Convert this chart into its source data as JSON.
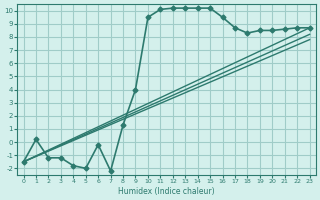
{
  "bg_color": "#d4f0ec",
  "grid_color": "#a0ccc8",
  "line_color": "#2d7a6e",
  "marker_color": "#2d7a6e",
  "xlabel": "Humidex (Indice chaleur)",
  "xlim": [
    -0.5,
    23.5
  ],
  "ylim": [
    -2.5,
    10.5
  ],
  "xticks": [
    0,
    1,
    2,
    3,
    4,
    5,
    6,
    7,
    8,
    9,
    10,
    11,
    12,
    13,
    14,
    15,
    16,
    17,
    18,
    19,
    20,
    21,
    22,
    23
  ],
  "yticks": [
    -2,
    -1,
    0,
    1,
    2,
    3,
    4,
    5,
    6,
    7,
    8,
    9,
    10
  ],
  "main_curve": {
    "x": [
      0,
      1,
      2,
      3,
      4,
      5,
      6,
      7,
      8,
      9,
      10,
      11,
      12,
      13,
      14,
      15,
      16,
      17,
      18,
      19,
      20,
      21,
      22,
      23
    ],
    "y": [
      -1.5,
      0.2,
      -1.2,
      -1.2,
      -1.8,
      -2.0,
      -0.2,
      -2.2,
      1.3,
      4.0,
      9.5,
      10.1,
      10.2,
      10.2,
      10.2,
      10.2,
      9.5,
      8.7,
      8.3,
      8.5,
      8.5,
      8.6,
      8.7,
      8.7
    ]
  },
  "line1": {
    "x": [
      0,
      23
    ],
    "y": [
      -1.5,
      8.7
    ]
  },
  "line2": {
    "x": [
      0,
      23
    ],
    "y": [
      -1.5,
      8.2
    ]
  },
  "line3": {
    "x": [
      0,
      23
    ],
    "y": [
      -1.5,
      7.8
    ]
  }
}
